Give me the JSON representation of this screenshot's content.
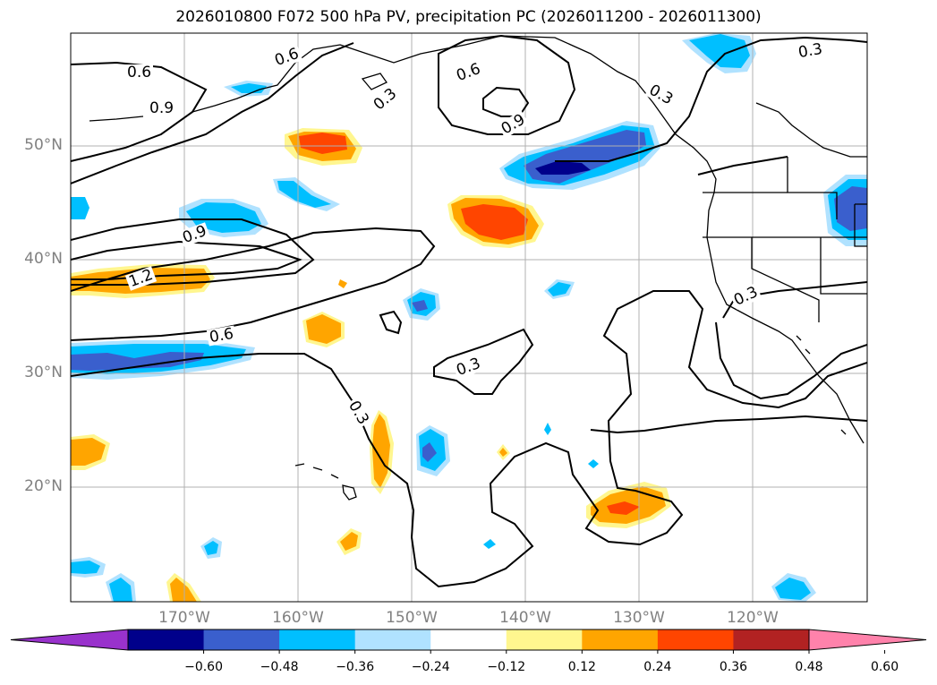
{
  "title": "2026010800 F072 500 hPa PV, precipitation PC (2026011200 - 2026011300)",
  "lat_ticks": [
    "50°N",
    "40°N",
    "30°N",
    "20°N"
  ],
  "lon_ticks": [
    "170°W",
    "160°W",
    "150°W",
    "140°W",
    "130°W",
    "120°W"
  ],
  "contour_labels": [
    "0.6",
    "0.9",
    "0.6",
    "0.3",
    "0.6",
    "0.9",
    "0.3",
    "0.3",
    "0.9",
    "1.2",
    "0.6",
    "0.3",
    "0.3",
    "0.3"
  ],
  "colorbar": {
    "colors": [
      "#9932cc",
      "#00008b",
      "#3a5fcd",
      "#00bfff",
      "#b0e2ff",
      "#ffffff",
      "#fff68f",
      "#ffa500",
      "#ff4500",
      "#b22222",
      "#ff82ab"
    ],
    "labels": [
      "−0.60",
      "−0.48",
      "−0.36",
      "−0.24",
      "−0.12",
      "0.12",
      "0.24",
      "0.36",
      "0.48",
      "0.60"
    ]
  }
}
